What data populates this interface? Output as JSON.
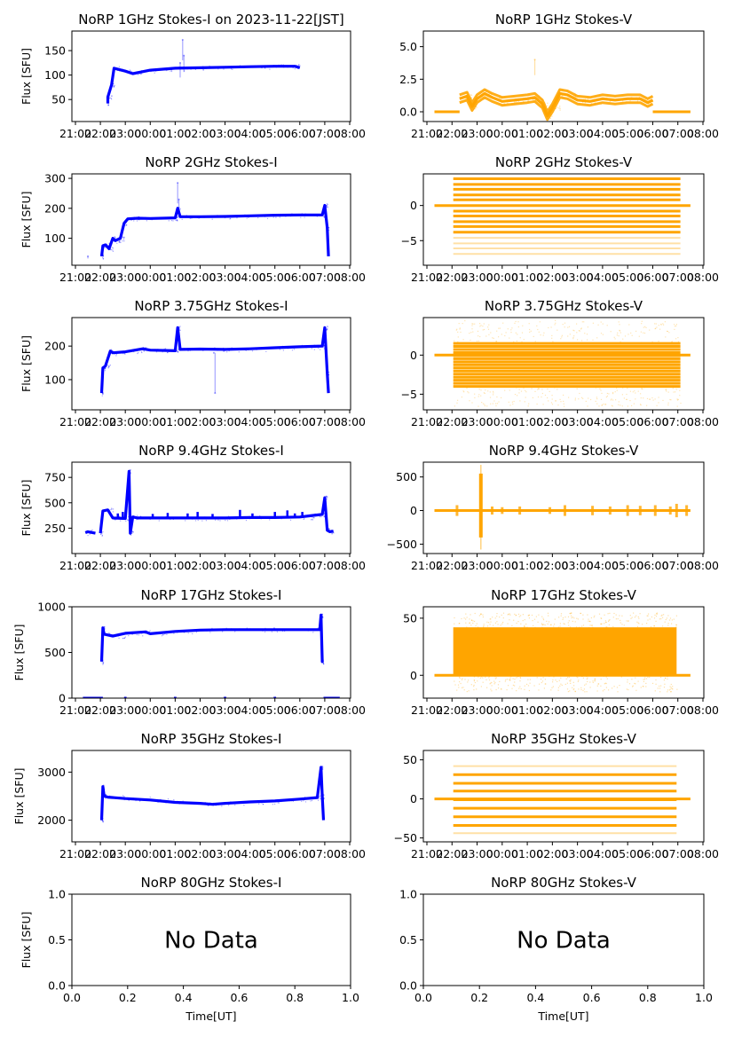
{
  "figure": {
    "date": "2023-11-22",
    "timezone_label": "JST",
    "colors": {
      "stokes_i": "#0000ff",
      "stokes_v": "#ffa500",
      "axis": "#000000"
    }
  },
  "chart_data": [
    {
      "type": "scatter",
      "panel": "1GHz-I",
      "title": "NoRP 1GHz Stokes-I on 2023-11-22[JST]",
      "xlabel": "",
      "ylabel": "Flux [SFU]",
      "xlim_hours": [
        21,
        32
      ],
      "ylim": [
        5,
        190
      ],
      "yticks": [
        50,
        100,
        150
      ],
      "ytick_labels": [
        "50",
        "100",
        "150"
      ],
      "color": "#0000ff",
      "series": [
        {
          "name": "main",
          "x": [
            22.3,
            22.3,
            22.45,
            22.55,
            23.0,
            23.3,
            23.6,
            24.0,
            24.5,
            25.0,
            26.0,
            27.0,
            28.0,
            29.0,
            29.8,
            30.0
          ],
          "y": [
            42,
            55,
            80,
            114,
            108,
            103,
            106,
            110,
            112,
            114,
            115,
            116,
            117,
            118,
            118,
            115
          ]
        },
        {
          "name": "spike",
          "x": [
            25.2,
            25.3,
            25.35
          ],
          "y": [
            125,
            172,
            140
          ]
        }
      ]
    },
    {
      "type": "scatter",
      "panel": "1GHz-V",
      "title": "NoRP 1GHz Stokes-V",
      "xlabel": "",
      "ylabel": "",
      "xlim_hours": [
        21,
        32
      ],
      "ylim": [
        -0.75,
        6.2
      ],
      "yticks": [
        0.0,
        2.5,
        5.0
      ],
      "ytick_labels": [
        "0.0",
        "2.5",
        "5.0"
      ],
      "color": "#ffa500",
      "series": [
        {
          "name": "baseline",
          "x": [
            21.3,
            22.3
          ],
          "y": [
            0,
            0
          ]
        },
        {
          "name": "baseline",
          "x": [
            30.0,
            31.5
          ],
          "y": [
            0,
            0
          ]
        },
        {
          "name": "main",
          "x": [
            22.3,
            22.6,
            22.8,
            23.0,
            23.3,
            23.6,
            24.0,
            24.5,
            25.0,
            25.3,
            25.6,
            25.8,
            26.0,
            26.3,
            26.6,
            27.0,
            27.5,
            28.0,
            28.5,
            29.0,
            29.5,
            29.8,
            30.0
          ],
          "y": [
            1.0,
            1.2,
            0.4,
            1.0,
            1.4,
            1.1,
            0.8,
            0.9,
            1.0,
            1.1,
            0.6,
            -0.3,
            0.3,
            1.4,
            1.3,
            0.9,
            0.8,
            1.0,
            0.9,
            1.0,
            1.0,
            0.7,
            0.9
          ]
        },
        {
          "name": "spike",
          "x": [
            25.3
          ],
          "y": [
            4.0
          ]
        }
      ]
    },
    {
      "type": "scatter",
      "panel": "2GHz-I",
      "title": "NoRP 2GHz Stokes-I",
      "xlabel": "",
      "ylabel": "Flux [SFU]",
      "xlim_hours": [
        21,
        32
      ],
      "ylim": [
        10,
        315
      ],
      "yticks": [
        100,
        200,
        300
      ],
      "ytick_labels": [
        "100",
        "200",
        "300"
      ],
      "color": "#0000ff",
      "series": [
        {
          "name": "outlier",
          "x": [
            21.5
          ],
          "y": [
            40
          ]
        },
        {
          "name": "main",
          "x": [
            22.05,
            22.1,
            22.2,
            22.35,
            22.5,
            22.6,
            22.8,
            22.95,
            23.1,
            23.5,
            24.0,
            25.0,
            25.1,
            25.2,
            26.0,
            27.0,
            28.0,
            29.0,
            30.0,
            30.9,
            31.0,
            31.1,
            31.15
          ],
          "y": [
            40,
            75,
            78,
            65,
            100,
            92,
            100,
            150,
            165,
            167,
            166,
            168,
            200,
            172,
            172,
            173,
            175,
            177,
            178,
            178,
            210,
            135,
            40
          ]
        },
        {
          "name": "spike",
          "x": [
            25.1,
            25.15
          ],
          "y": [
            285,
            230
          ]
        }
      ]
    },
    {
      "type": "scatter",
      "panel": "2GHz-V",
      "title": "NoRP 2GHz Stokes-V",
      "xlabel": "",
      "ylabel": "",
      "xlim_hours": [
        21,
        32
      ],
      "ylim": [
        -8.5,
        4.5
      ],
      "yticks": [
        -5,
        0
      ],
      "ytick_labels": [
        "−5",
        "0"
      ],
      "color": "#ffa500",
      "levels": [
        3.8,
        3.0,
        2.3,
        1.5,
        0.8,
        -0.8,
        -1.5,
        -2.3,
        -3.0,
        -3.8,
        -4.6,
        -5.4,
        -6.1,
        -6.9
      ],
      "series": [
        {
          "name": "baseline",
          "x": [
            21.3,
            31.5
          ],
          "y": [
            0,
            0
          ]
        },
        {
          "name": "digitized-band",
          "x": [
            22.05,
            31.1
          ],
          "y_range": [
            -7.6,
            3.8
          ]
        }
      ]
    },
    {
      "type": "scatter",
      "panel": "3.75GHz-I",
      "title": "NoRP 3.75GHz Stokes-I",
      "xlabel": "",
      "ylabel": "Flux [SFU]",
      "xlim_hours": [
        21,
        32
      ],
      "ylim": [
        10,
        285
      ],
      "yticks": [
        100,
        200
      ],
      "ytick_labels": [
        "100",
        "200"
      ],
      "color": "#0000ff",
      "series": [
        {
          "name": "main",
          "x": [
            22.05,
            22.1,
            22.2,
            22.4,
            22.5,
            23.0,
            23.7,
            24.0,
            25.0,
            25.1,
            25.2,
            26.0,
            27.0,
            28.0,
            29.0,
            30.0,
            30.9,
            31.0,
            31.1,
            31.15
          ],
          "y": [
            60,
            135,
            140,
            185,
            180,
            183,
            192,
            188,
            186,
            255,
            190,
            191,
            190,
            192,
            195,
            198,
            200,
            255,
            120,
            60
          ]
        },
        {
          "name": "dip",
          "x": [
            26.55,
            26.6
          ],
          "y": [
            180,
            60
          ]
        }
      ]
    },
    {
      "type": "scatter",
      "panel": "3.75GHz-V",
      "title": "NoRP 3.75GHz Stokes-V",
      "xlabel": "",
      "ylabel": "",
      "xlim_hours": [
        21,
        32
      ],
      "ylim": [
        -7,
        4.8
      ],
      "yticks": [
        -5,
        0
      ],
      "ytick_labels": [
        "−5",
        "0"
      ],
      "color": "#ffa500",
      "series": [
        {
          "name": "baseline",
          "x": [
            21.3,
            31.5
          ],
          "y": [
            0,
            0
          ]
        },
        {
          "name": "digitized-band",
          "x": [
            22.05,
            31.1
          ],
          "y_range": [
            -6.5,
            4.5
          ],
          "dense_range": [
            -4.0,
            1.5
          ]
        }
      ]
    },
    {
      "type": "scatter",
      "panel": "9.4GHz-I",
      "title": "NoRP 9.4GHz Stokes-I",
      "xlabel": "",
      "ylabel": "Flux [SFU]",
      "xlim_hours": [
        21,
        32
      ],
      "ylim": [
        0,
        900
      ],
      "yticks": [
        250,
        500,
        750
      ],
      "ytick_labels": [
        "250",
        "500",
        "750"
      ],
      "color": "#0000ff",
      "series": [
        {
          "name": "pre",
          "x": [
            21.4,
            21.5,
            21.8
          ],
          "y": [
            205,
            215,
            200
          ]
        },
        {
          "name": "main",
          "x": [
            22.0,
            22.1,
            22.3,
            22.5,
            23.0,
            23.15,
            23.2,
            23.3,
            23.5,
            24.0,
            25.0,
            26.0,
            27.0,
            28.0,
            29.0,
            30.0,
            30.5,
            30.9,
            31.0,
            31.1,
            31.2,
            31.35
          ],
          "y": [
            200,
            420,
            430,
            350,
            345,
            810,
            200,
            360,
            350,
            350,
            350,
            350,
            350,
            355,
            355,
            360,
            375,
            385,
            550,
            230,
            215,
            220
          ]
        },
        {
          "name": "bursts",
          "x": [
            22.7,
            22.9,
            24.1,
            24.7,
            25.5,
            25.9,
            26.5,
            27.6,
            28.1,
            29.0,
            29.5,
            29.8,
            30.1
          ],
          "y": [
            395,
            410,
            390,
            400,
            395,
            410,
            390,
            430,
            395,
            410,
            425,
            395,
            410
          ]
        }
      ]
    },
    {
      "type": "scatter",
      "panel": "9.4GHz-V",
      "title": "NoRP 9.4GHz Stokes-V",
      "xlabel": "",
      "ylabel": "",
      "xlim_hours": [
        21,
        32
      ],
      "ylim": [
        -640,
        720
      ],
      "yticks": [
        -500,
        0,
        500
      ],
      "ytick_labels": [
        "−500",
        "0",
        "500"
      ],
      "color": "#ffa500",
      "series": [
        {
          "name": "baseline",
          "x": [
            21.3,
            31.5
          ],
          "y": [
            0,
            0
          ]
        },
        {
          "name": "burst-main",
          "x": [
            23.15
          ],
          "y_range": [
            -580,
            680
          ]
        },
        {
          "name": "bursts",
          "x": [
            22.2,
            23.6,
            24.0,
            24.7,
            25.9,
            26.5,
            27.6,
            28.3,
            29.0,
            29.5,
            30.1,
            30.7,
            30.95,
            31.35
          ],
          "amplitude": [
            80,
            60,
            50,
            60,
            50,
            80,
            70,
            60,
            80,
            70,
            80,
            60,
            100,
            80
          ]
        }
      ]
    },
    {
      "type": "scatter",
      "panel": "17GHz-I",
      "title": "NoRP 17GHz Stokes-I",
      "xlabel": "",
      "ylabel": "Flux [SFU]",
      "xlim_hours": [
        21,
        32
      ],
      "ylim": [
        0,
        1000
      ],
      "yticks": [
        0,
        500,
        1000
      ],
      "ytick_labels": [
        "0",
        "500",
        "1000"
      ],
      "color": "#0000ff",
      "series": [
        {
          "name": "zero-pre",
          "x": [
            21.3,
            22.1
          ],
          "y": [
            0,
            0
          ]
        },
        {
          "name": "zero-post",
          "x": [
            30.95,
            31.6
          ],
          "y": [
            0,
            0
          ]
        },
        {
          "name": "zero-ticks",
          "x": [
            23.0,
            25.0,
            27.0,
            29.0
          ],
          "y": [
            0,
            0,
            0,
            0
          ]
        },
        {
          "name": "main",
          "x": [
            22.05,
            22.1,
            22.15,
            22.5,
            23.0,
            23.8,
            24.0,
            25.0,
            26.0,
            27.0,
            28.0,
            29.0,
            30.0,
            30.8,
            30.85,
            30.9,
            30.95
          ],
          "y": [
            400,
            770,
            700,
            680,
            710,
            725,
            705,
            730,
            745,
            750,
            750,
            750,
            750,
            750,
            910,
            400,
            400
          ]
        }
      ]
    },
    {
      "type": "scatter",
      "panel": "17GHz-V",
      "title": "NoRP 17GHz Stokes-V",
      "xlabel": "",
      "ylabel": "",
      "xlim_hours": [
        21,
        32
      ],
      "ylim": [
        -20,
        60
      ],
      "yticks": [
        0,
        50
      ],
      "ytick_labels": [
        "0",
        "50"
      ],
      "color": "#ffa500",
      "series": [
        {
          "name": "baseline",
          "x": [
            21.3,
            31.5
          ],
          "y": [
            0,
            0
          ]
        },
        {
          "name": "dense-band",
          "x": [
            22.05,
            30.95
          ],
          "y_range": [
            -14,
            55
          ],
          "dense_range": [
            0,
            42
          ]
        }
      ]
    },
    {
      "type": "scatter",
      "panel": "35GHz-I",
      "title": "NoRP 35GHz Stokes-I",
      "xlabel": "",
      "ylabel": "Flux [SFU]",
      "xlim_hours": [
        21,
        32
      ],
      "ylim": [
        1550,
        3450
      ],
      "yticks": [
        2000,
        3000
      ],
      "ytick_labels": [
        "2000",
        "3000"
      ],
      "color": "#0000ff",
      "series": [
        {
          "name": "main",
          "x": [
            22.05,
            22.1,
            22.15,
            22.3,
            23.0,
            24.0,
            25.0,
            26.0,
            26.5,
            27.0,
            28.0,
            29.0,
            30.0,
            30.7,
            30.85,
            30.9,
            30.95
          ],
          "y": [
            2000,
            2700,
            2500,
            2480,
            2450,
            2420,
            2370,
            2350,
            2330,
            2350,
            2380,
            2400,
            2440,
            2470,
            3100,
            2500,
            2000
          ]
        }
      ]
    },
    {
      "type": "scatter",
      "panel": "35GHz-V",
      "title": "NoRP 35GHz Stokes-V",
      "xlabel": "",
      "ylabel": "",
      "xlim_hours": [
        21,
        32
      ],
      "ylim": [
        -55,
        62
      ],
      "yticks": [
        -50,
        0,
        50
      ],
      "ytick_labels": [
        "−50",
        "0",
        "50"
      ],
      "color": "#ffa500",
      "levels": [
        42,
        31,
        20,
        10,
        -1,
        -12,
        -23,
        -34,
        -44
      ],
      "series": [
        {
          "name": "baseline",
          "x": [
            21.3,
            31.5
          ],
          "y": [
            0,
            0
          ]
        },
        {
          "name": "digitized-band",
          "x": [
            22.05,
            30.95
          ],
          "y_range": [
            -44,
            52
          ]
        }
      ]
    },
    {
      "type": "scatter",
      "panel": "80GHz-I",
      "title": "NoRP 80GHz Stokes-I",
      "xlabel": "Time[UT]",
      "ylabel": "Flux [SFU]",
      "xlim": [
        0,
        1
      ],
      "ylim": [
        0,
        1
      ],
      "xticks": [
        "0.0",
        "0.2",
        "0.4",
        "0.6",
        "0.8",
        "1.0"
      ],
      "yticks": [
        0,
        0.5,
        1.0
      ],
      "ytick_labels": [
        "0.0",
        "0.5",
        "1.0"
      ],
      "annotation": "No Data",
      "series": []
    },
    {
      "type": "scatter",
      "panel": "80GHz-V",
      "title": "NoRP 80GHz Stokes-V",
      "xlabel": "Time[UT]",
      "ylabel": "",
      "xlim": [
        0,
        1
      ],
      "ylim": [
        0,
        1
      ],
      "xticks": [
        "0.0",
        "0.2",
        "0.4",
        "0.6",
        "0.8",
        "1.0"
      ],
      "yticks": [
        0,
        0.5,
        1.0
      ],
      "ytick_labels": [
        "0.0",
        "0.5",
        "1.0"
      ],
      "annotation": "No Data",
      "series": []
    }
  ],
  "time_ticks": [
    "21:00",
    "22:00",
    "23:00",
    "00:00",
    "01:00",
    "02:00",
    "03:00",
    "04:00",
    "05:00",
    "06:00",
    "07:00",
    "08:00"
  ]
}
